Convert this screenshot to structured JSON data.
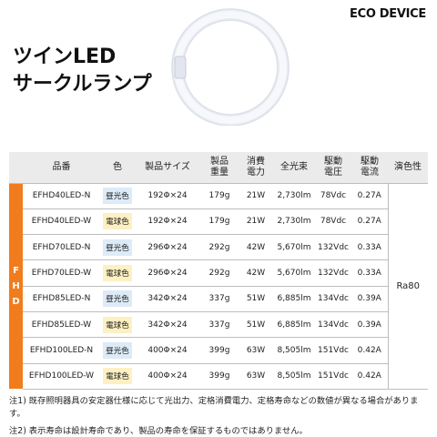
{
  "brand": "ECO DEVICE",
  "title": {
    "line1": "ツインLED",
    "line2": "サークルランプ"
  },
  "table": {
    "headers": {
      "model": "品番",
      "color": "色",
      "size": "製品サイズ",
      "weight": "製品\n重量",
      "power": "消費\n電力",
      "flux": "全光束",
      "voltage": "駆動\n電圧",
      "current": "駆動\n電流",
      "cri": "演色性"
    },
    "group_label": [
      "F",
      "H",
      "D"
    ],
    "cri_value": "Ra80",
    "rows": [
      {
        "model": "EFHD40LED-N",
        "color": "昼光色",
        "tone": "n",
        "size": "192Φ×24",
        "weight": "179g",
        "power": "21W",
        "flux": "2,730lm",
        "voltage": "78Vdc",
        "current": "0.27A"
      },
      {
        "model": "EFHD40LED-W",
        "color": "電球色",
        "tone": "w",
        "size": "192Φ×24",
        "weight": "179g",
        "power": "21W",
        "flux": "2,730lm",
        "voltage": "78Vdc",
        "current": "0.27A"
      },
      {
        "model": "EFHD70LED-N",
        "color": "昼光色",
        "tone": "n",
        "size": "296Φ×24",
        "weight": "292g",
        "power": "42W",
        "flux": "5,670lm",
        "voltage": "132Vdc",
        "current": "0.33A"
      },
      {
        "model": "EFHD70LED-W",
        "color": "電球色",
        "tone": "w",
        "size": "296Φ×24",
        "weight": "292g",
        "power": "42W",
        "flux": "5,670lm",
        "voltage": "132Vdc",
        "current": "0.33A"
      },
      {
        "model": "EFHD85LED-N",
        "color": "昼光色",
        "tone": "n",
        "size": "342Φ×24",
        "weight": "337g",
        "power": "51W",
        "flux": "6,885lm",
        "voltage": "134Vdc",
        "current": "0.39A"
      },
      {
        "model": "EFHD85LED-W",
        "color": "電球色",
        "tone": "w",
        "size": "342Φ×24",
        "weight": "337g",
        "power": "51W",
        "flux": "6,885lm",
        "voltage": "134Vdc",
        "current": "0.39A"
      },
      {
        "model": "EFHD100LED-N",
        "color": "昼光色",
        "tone": "n",
        "size": "400Φ×24",
        "weight": "399g",
        "power": "63W",
        "flux": "8,505lm",
        "voltage": "151Vdc",
        "current": "0.42A"
      },
      {
        "model": "EFHD100LED-W",
        "color": "電球色",
        "tone": "w",
        "size": "400Φ×24",
        "weight": "399g",
        "power": "63W",
        "flux": "8,505lm",
        "voltage": "151Vdc",
        "current": "0.42A"
      }
    ]
  },
  "notes": [
    "注1) 既存照明器具の安定器仕様に応じて光出力、定格消費電力、定格寿命などの数値が異なる場合があります。",
    "注2) 表示寿命は設計寿命であり、製品の寿命を保証するものではありません。"
  ],
  "colors": {
    "accent": "#f07c1e",
    "daylight_chip": "#dcebf7",
    "warm_chip": "#fdf0c2",
    "header_bg": "#ebebeb"
  }
}
